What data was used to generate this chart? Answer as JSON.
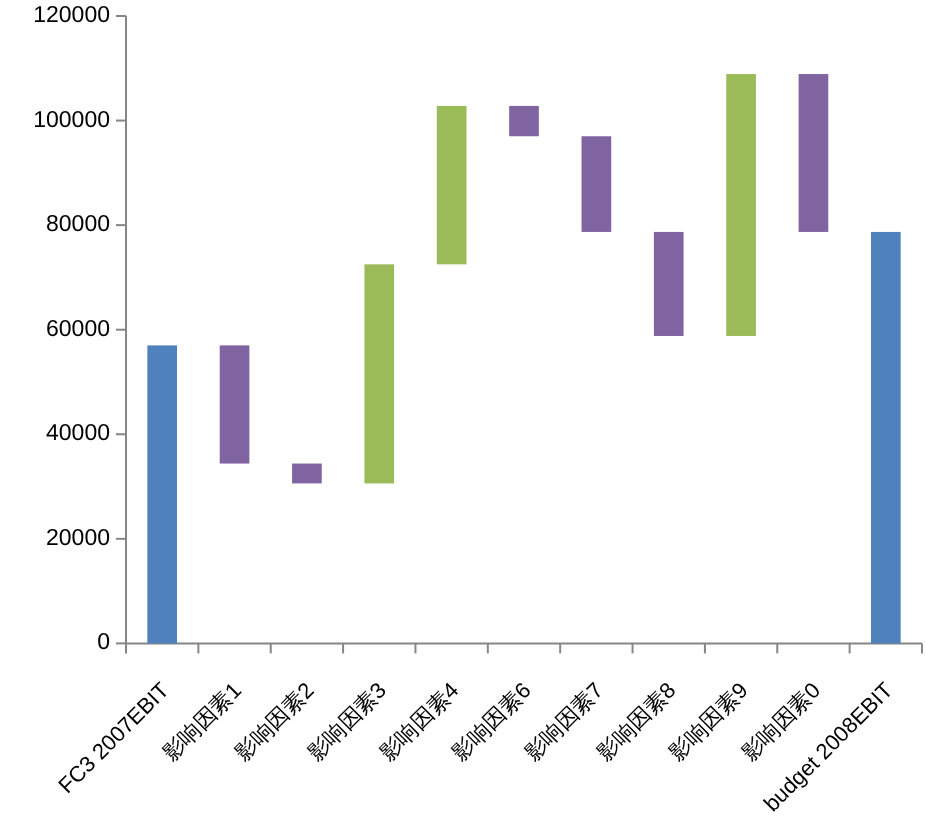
{
  "chart_data": {
    "type": "bar",
    "categories": [
      "FC3 2007EBIT",
      "影响因素1",
      "影响因素2",
      "影响因素3",
      "影响因素4",
      "影响因素6",
      "影响因素7",
      "影响因素8",
      "影响因素9",
      "影响因素0",
      "budget 2008EBIT"
    ],
    "values": [
      57000,
      22600,
      3800,
      41900,
      30300,
      5800,
      18300,
      19900,
      50100,
      30200,
      78700
    ],
    "base": [
      0,
      34400,
      30600,
      30600,
      72500,
      97000,
      78700,
      58800,
      58800,
      78700,
      0
    ],
    "colors": [
      "#4f81bd",
      "#8064a2",
      "#8064a2",
      "#9bbb59",
      "#9bbb59",
      "#8064a2",
      "#8064a2",
      "#8064a2",
      "#9bbb59",
      "#8064a2",
      "#4f81bd"
    ],
    "ylim": [
      0,
      120000
    ],
    "yticks": [
      0,
      20000,
      40000,
      60000,
      80000,
      100000,
      120000
    ]
  }
}
